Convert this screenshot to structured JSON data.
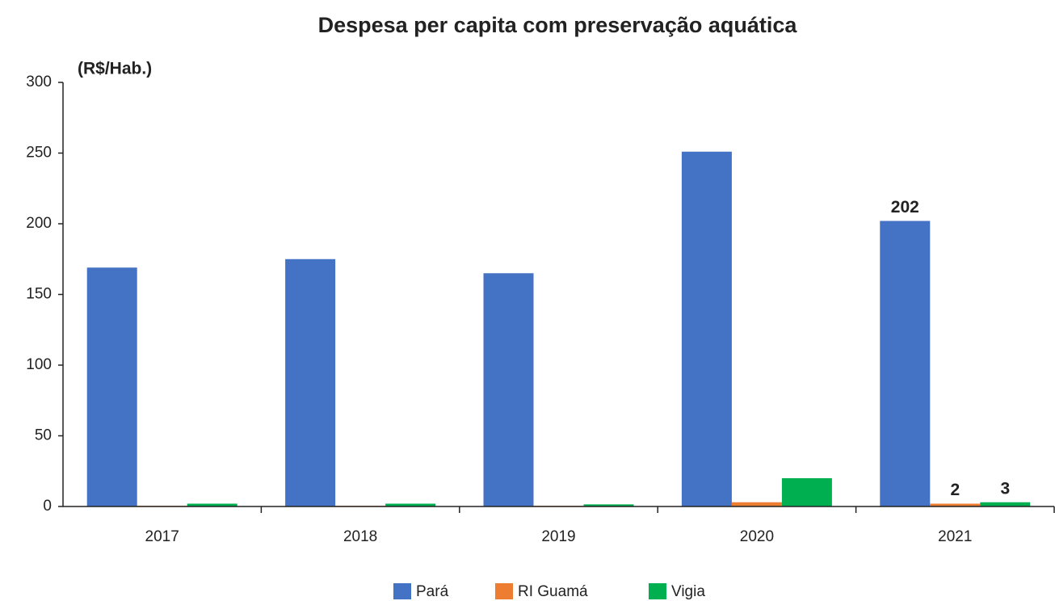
{
  "chart_data": {
    "type": "bar",
    "title": "Despesa per capita com preservação aquática",
    "y_label": "(R$/Hab.)",
    "categories": [
      "2017",
      "2018",
      "2019",
      "2020",
      "2021"
    ],
    "series": [
      {
        "name": "Pará",
        "color": "#4472c4",
        "values": [
          169,
          175,
          165,
          251,
          202
        ]
      },
      {
        "name": "RI Guamá",
        "color": "#ed7d31",
        "values": [
          0.5,
          0.5,
          0.5,
          3,
          2
        ]
      },
      {
        "name": "Vigia",
        "color": "#00b050",
        "values": [
          2,
          2,
          1.5,
          20,
          3
        ]
      }
    ],
    "ylim": [
      0,
      300
    ],
    "yticks": [
      0,
      50,
      100,
      150,
      200,
      250,
      300
    ],
    "grid": false,
    "data_labels": "last",
    "legend": "bottom"
  }
}
